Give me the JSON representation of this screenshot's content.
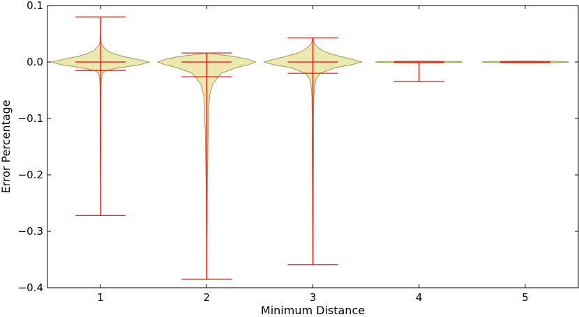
{
  "chart_data": {
    "type": "violin",
    "xlabel": "Minimum Distance",
    "ylabel": "Error Percentage",
    "ylim": [
      -0.4,
      0.1
    ],
    "xlim": [
      0.5,
      5.5
    ],
    "yticks": [
      0.1,
      0.0,
      -0.1,
      -0.2,
      -0.3,
      -0.4
    ],
    "ytick_labels": [
      "0.1",
      "0.0",
      "−0.1",
      "−0.2",
      "−0.3",
      "−0.4"
    ],
    "xticks": [
      1,
      2,
      3,
      4,
      5
    ],
    "xtick_labels": [
      "1",
      "2",
      "3",
      "4",
      "5"
    ],
    "grid": false,
    "colors": {
      "violin_fill": "#ebe8b0",
      "violin_edge": "#9a9a58",
      "stats": "#ff0000"
    },
    "violins": [
      {
        "position": 1,
        "max": 0.08,
        "min": -0.272,
        "mean": 0.0,
        "median": -0.015,
        "profile": [
          [
            -0.272,
            0.002
          ],
          [
            -0.2,
            0.004
          ],
          [
            -0.15,
            0.008
          ],
          [
            -0.1,
            0.007
          ],
          [
            -0.06,
            0.008
          ],
          [
            -0.04,
            0.012
          ],
          [
            -0.03,
            0.02
          ],
          [
            -0.02,
            0.04
          ],
          [
            -0.015,
            0.12
          ],
          [
            -0.01,
            0.4
          ],
          [
            -0.005,
            0.8
          ],
          [
            0.0,
            1.0
          ],
          [
            0.005,
            0.75
          ],
          [
            0.01,
            0.45
          ],
          [
            0.015,
            0.27
          ],
          [
            0.02,
            0.14
          ],
          [
            0.025,
            0.08
          ],
          [
            0.03,
            0.035
          ],
          [
            0.035,
            0.012
          ],
          [
            0.045,
            0.005
          ],
          [
            0.06,
            0.003
          ],
          [
            0.08,
            0.002
          ]
        ]
      },
      {
        "position": 2,
        "max": 0.016,
        "min": -0.385,
        "mean": 0.0,
        "median": -0.026,
        "profile": [
          [
            -0.385,
            0.002
          ],
          [
            -0.32,
            0.003
          ],
          [
            -0.28,
            0.008
          ],
          [
            -0.24,
            0.01
          ],
          [
            -0.2,
            0.016
          ],
          [
            -0.16,
            0.024
          ],
          [
            -0.12,
            0.03
          ],
          [
            -0.1,
            0.045
          ],
          [
            -0.08,
            0.045
          ],
          [
            -0.06,
            0.06
          ],
          [
            -0.04,
            0.12
          ],
          [
            -0.03,
            0.2
          ],
          [
            -0.02,
            0.3
          ],
          [
            -0.01,
            0.6
          ],
          [
            -0.005,
            0.85
          ],
          [
            0.0,
            1.0
          ],
          [
            0.005,
            0.85
          ],
          [
            0.01,
            0.55
          ],
          [
            0.013,
            0.25
          ],
          [
            0.016,
            0.05
          ]
        ]
      },
      {
        "position": 3,
        "max": 0.043,
        "min": -0.359,
        "mean": 0.0,
        "median": -0.02,
        "profile": [
          [
            -0.359,
            0.002
          ],
          [
            -0.3,
            0.004
          ],
          [
            -0.25,
            0.007
          ],
          [
            -0.2,
            0.01
          ],
          [
            -0.15,
            0.014
          ],
          [
            -0.1,
            0.012
          ],
          [
            -0.06,
            0.02
          ],
          [
            -0.04,
            0.04
          ],
          [
            -0.03,
            0.07
          ],
          [
            -0.02,
            0.15
          ],
          [
            -0.01,
            0.45
          ],
          [
            -0.005,
            0.8
          ],
          [
            0.0,
            1.0
          ],
          [
            0.005,
            0.8
          ],
          [
            0.01,
            0.55
          ],
          [
            0.015,
            0.35
          ],
          [
            0.02,
            0.2
          ],
          [
            0.025,
            0.12
          ],
          [
            0.03,
            0.06
          ],
          [
            0.035,
            0.025
          ],
          [
            0.04,
            0.01
          ],
          [
            0.043,
            0.004
          ]
        ]
      },
      {
        "position": 4,
        "max": 0.0,
        "min": -0.035,
        "mean": 0.0,
        "median": 0.0,
        "profile": [
          [
            -0.002,
            0.001
          ],
          [
            -0.0008,
            0.8
          ],
          [
            0.0,
            0.9
          ],
          [
            0.0008,
            0.8
          ],
          [
            0.002,
            0.001
          ]
        ]
      },
      {
        "position": 5,
        "max": 0.0,
        "min": 0.0,
        "mean": 0.0,
        "median": 0.0,
        "profile": [
          [
            -0.002,
            0.001
          ],
          [
            -0.0008,
            0.8
          ],
          [
            0.0,
            0.9
          ],
          [
            0.0008,
            0.8
          ],
          [
            0.002,
            0.001
          ]
        ]
      }
    ]
  }
}
